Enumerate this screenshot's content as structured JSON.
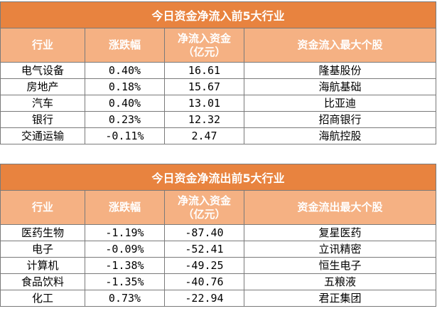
{
  "inflow": {
    "title": "今日资金净流入前5大行业",
    "headers": [
      "行业",
      "涨跌幅",
      "净流入资金\n（亿元）",
      "资金流入最大个股"
    ],
    "rows": [
      {
        "industry": "电气设备",
        "change": "0.40%",
        "net": "16.61",
        "stock": "隆基股份"
      },
      {
        "industry": "房地产",
        "change": "0.18%",
        "net": "15.67",
        "stock": "海航基础"
      },
      {
        "industry": "汽车",
        "change": "0.40%",
        "net": "13.01",
        "stock": "比亚迪"
      },
      {
        "industry": "银行",
        "change": "0.23%",
        "net": "12.32",
        "stock": "招商银行"
      },
      {
        "industry": "交通运输",
        "change": "-0.11%",
        "net": "2.47",
        "stock": "海航控股"
      }
    ]
  },
  "outflow": {
    "title": "今日资金净流出前5大行业",
    "headers": [
      "行业",
      "涨跌幅",
      "净流入资金\n（亿元）",
      "资金流出最大个股"
    ],
    "rows": [
      {
        "industry": "医药生物",
        "change": "-1.19%",
        "net": "-87.40",
        "stock": "复星医药"
      },
      {
        "industry": "电子",
        "change": "-0.09%",
        "net": "-52.41",
        "stock": "立讯精密"
      },
      {
        "industry": "计算机",
        "change": "-1.38%",
        "net": "-49.25",
        "stock": "恒生电子"
      },
      {
        "industry": "食品饮料",
        "change": "-1.35%",
        "net": "-40.76",
        "stock": "五粮液"
      },
      {
        "industry": "化工",
        "change": "0.73%",
        "net": "-22.94",
        "stock": "君正集团"
      }
    ]
  },
  "colors": {
    "title_bg": "#e8833f",
    "header_bg": "#f5b183",
    "border": "#7a7a7a"
  }
}
